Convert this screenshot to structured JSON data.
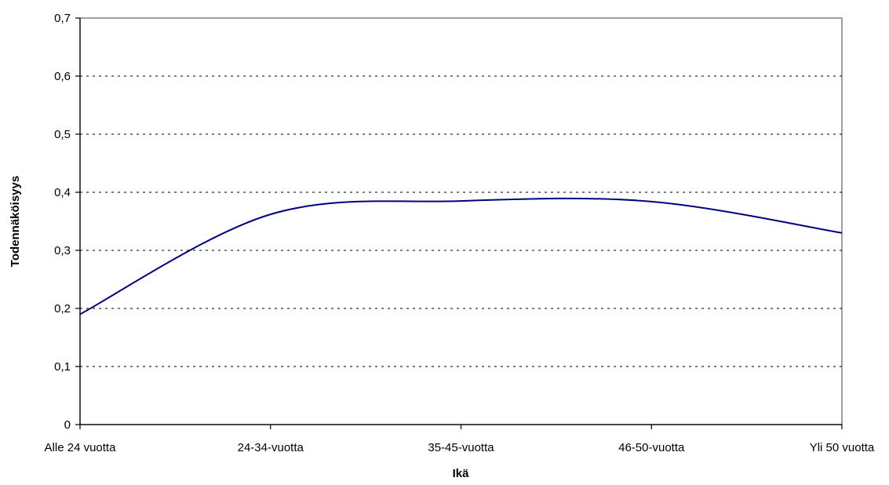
{
  "chart_data": {
    "type": "line",
    "title": "",
    "xlabel": "Ikä",
    "ylabel": "Todennäköisyys",
    "categories": [
      "Alle 24 vuotta",
      "24-34-vuotta",
      "35-45-vuotta",
      "46-50-vuotta",
      "Yli 50 vuotta"
    ],
    "series": [
      {
        "values": [
          0.19,
          0.362,
          0.385,
          0.384,
          0.33
        ]
      }
    ],
    "ylim": [
      0,
      0.7
    ],
    "yticks": [
      "0",
      "0,1",
      "0,2",
      "0,3",
      "0,4",
      "0,5",
      "0,6",
      "0,7"
    ],
    "grid": "horizontal dotted",
    "legend": "none",
    "colors": {
      "line": "#000080",
      "grid": "#000000",
      "axis": "#000000"
    }
  }
}
